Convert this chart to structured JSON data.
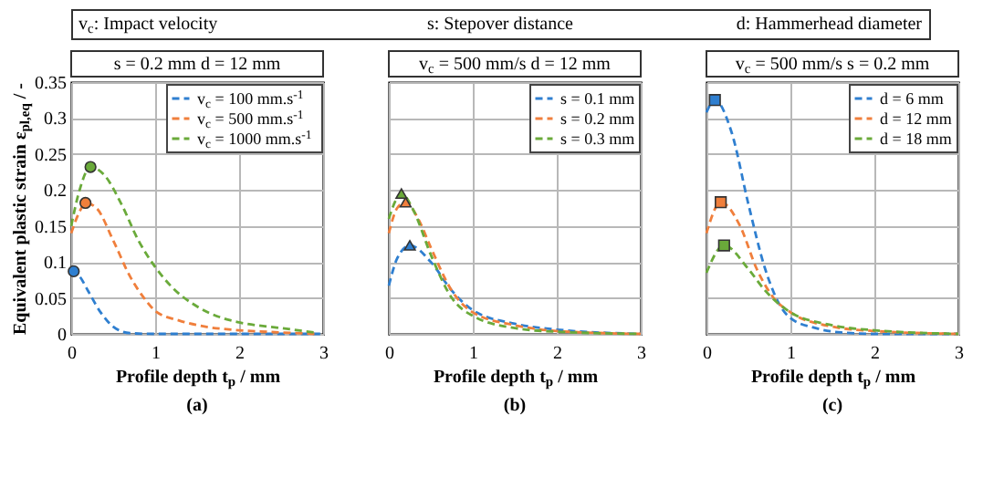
{
  "chart_data": [
    {
      "type": "other",
      "annotations": [
        "v$_{c}$: Impact velocity",
        "s: Stepover distance",
        "d: Hammerhead diameter"
      ]
    },
    {
      "type": "line",
      "subtitle": "s = 0.2 mm d = 12 mm",
      "xlabel": "Profile depth t$_{p}$ / mm",
      "ylabel": "Equivalent plastic strain ε$_{pl,eq}$ / -",
      "annotations": [
        "(a)"
      ],
      "xlim": [
        0,
        3
      ],
      "xticks": [
        0,
        1,
        2,
        3
      ],
      "ylim": [
        0,
        0.35
      ],
      "yticks": [
        0,
        0.05,
        0.1,
        0.15,
        0.2,
        0.25,
        0.3,
        0.35
      ],
      "grid": true,
      "legend": "top right",
      "line_style": "dashed",
      "series": [
        {
          "name": "v$_{c}$ = 100 mm.s$^{-1}$",
          "color": "#2f7fd0",
          "x": [
            0,
            0.03,
            0.1,
            0.2,
            0.35,
            0.5,
            0.7,
            1,
            2,
            3
          ],
          "values": [
            0.085,
            0.087,
            0.08,
            0.06,
            0.03,
            0.01,
            0.001,
            0,
            0,
            0
          ]
        },
        {
          "name": "v$_{c}$ = 500 mm.s$^{-1}$",
          "color": "#f07f3c",
          "x": [
            0,
            0.1,
            0.17,
            0.3,
            0.5,
            0.7,
            0.9,
            1,
            1.3,
            1.6,
            2,
            2.5,
            2.9
          ],
          "values": [
            0.14,
            0.17,
            0.182,
            0.175,
            0.13,
            0.08,
            0.045,
            0.032,
            0.018,
            0.01,
            0.005,
            0.002,
            0
          ]
        },
        {
          "name": "v$_{c}$ = 1000 mm.s$^{-1}$",
          "color": "#6aaa3a",
          "x": [
            0,
            0.1,
            0.23,
            0.4,
            0.6,
            0.8,
            1,
            1.2,
            1.5,
            1.8,
            2,
            2.5,
            2.9
          ],
          "values": [
            0.15,
            0.2,
            0.232,
            0.22,
            0.18,
            0.13,
            0.093,
            0.065,
            0.038,
            0.022,
            0.016,
            0.008,
            0.002
          ]
        },
        {
          "type": "scatter",
          "marker": "circle",
          "color": "#2f7fd0",
          "x": [
            0.03
          ],
          "values": [
            0.087
          ]
        },
        {
          "type": "scatter",
          "marker": "circle",
          "color": "#f07f3c",
          "x": [
            0.17
          ],
          "values": [
            0.182
          ]
        },
        {
          "type": "scatter",
          "marker": "circle",
          "color": "#6aaa3a",
          "x": [
            0.23
          ],
          "values": [
            0.232
          ]
        }
      ]
    },
    {
      "type": "line",
      "subtitle": "v$_{c}$ = 500 mm/s d = 12 mm",
      "xlabel": "Profile depth t$_{p}$ / mm",
      "annotations": [
        "(b)"
      ],
      "xlim": [
        0,
        3
      ],
      "xticks": [
        0,
        1,
        2,
        3
      ],
      "ylim": [
        0,
        0.35
      ],
      "yticks": [
        0,
        0.05,
        0.1,
        0.15,
        0.2,
        0.25,
        0.3,
        0.35
      ],
      "tick_labels": "x",
      "grid": true,
      "legend": "top right",
      "line_style": "dashed",
      "series": [
        {
          "name": "s = 0.1 mm",
          "color": "#2f7fd0",
          "x": [
            0,
            0.1,
            0.25,
            0.5,
            0.75,
            1,
            1.5,
            2,
            3
          ],
          "values": [
            0.067,
            0.105,
            0.123,
            0.1,
            0.06,
            0.033,
            0.014,
            0.006,
            0
          ]
        },
        {
          "name": "s = 0.2 mm",
          "color": "#f07f3c",
          "x": [
            0,
            0.1,
            0.2,
            0.35,
            0.5,
            0.75,
            1,
            1.5,
            2,
            3
          ],
          "values": [
            0.14,
            0.175,
            0.183,
            0.16,
            0.12,
            0.06,
            0.03,
            0.012,
            0.004,
            0
          ]
        },
        {
          "name": "s = 0.3 mm",
          "color": "#6aaa3a",
          "x": [
            0,
            0.08,
            0.15,
            0.3,
            0.5,
            0.75,
            1,
            1.5,
            2,
            3
          ],
          "values": [
            0.16,
            0.185,
            0.195,
            0.17,
            0.11,
            0.05,
            0.025,
            0.008,
            0.003,
            0
          ]
        },
        {
          "type": "scatter",
          "marker": "triangle",
          "color": "#2f7fd0",
          "x": [
            0.25
          ],
          "values": [
            0.123
          ]
        },
        {
          "type": "scatter",
          "marker": "triangle",
          "color": "#f07f3c",
          "x": [
            0.2
          ],
          "values": [
            0.183
          ]
        },
        {
          "type": "scatter",
          "marker": "triangle",
          "color": "#6aaa3a",
          "x": [
            0.15
          ],
          "values": [
            0.195
          ]
        }
      ]
    },
    {
      "type": "line",
      "subtitle": "v$_{c}$ = 500 mm/s s = 0.2 mm",
      "xlabel": "Profile depth t$_{p}$ / mm",
      "annotations": [
        "(c)"
      ],
      "xlim": [
        0,
        3
      ],
      "xticks": [
        0,
        1,
        2,
        3
      ],
      "ylim": [
        0,
        0.35
      ],
      "yticks": [
        0,
        0.05,
        0.1,
        0.15,
        0.2,
        0.25,
        0.3,
        0.35
      ],
      "tick_labels": "x",
      "grid": true,
      "legend": "top right",
      "line_style": "dashed",
      "series": [
        {
          "name": "d = 6 mm",
          "color": "#2f7fd0",
          "x": [
            0,
            0.1,
            0.3,
            0.5,
            0.7,
            0.9,
            1,
            1.3,
            1.6,
            2,
            3
          ],
          "values": [
            0.308,
            0.325,
            0.28,
            0.18,
            0.09,
            0.035,
            0.022,
            0.008,
            0.002,
            0,
            0
          ]
        },
        {
          "name": "d = 12 mm",
          "color": "#f07f3c",
          "x": [
            0,
            0.17,
            0.4,
            0.6,
            0.8,
            1,
            1.5,
            2,
            3
          ],
          "values": [
            0.14,
            0.183,
            0.15,
            0.09,
            0.05,
            0.03,
            0.01,
            0.004,
            0
          ]
        },
        {
          "name": "d = 18 mm",
          "color": "#6aaa3a",
          "x": [
            0,
            0.21,
            0.5,
            0.7,
            1,
            1.5,
            2,
            3
          ],
          "values": [
            0.085,
            0.123,
            0.09,
            0.06,
            0.03,
            0.012,
            0.005,
            0
          ]
        },
        {
          "type": "scatter",
          "marker": "square",
          "color": "#2f7fd0",
          "x": [
            0.1
          ],
          "values": [
            0.325
          ]
        },
        {
          "type": "scatter",
          "marker": "square",
          "color": "#f07f3c",
          "x": [
            0.17
          ],
          "values": [
            0.183
          ]
        },
        {
          "type": "scatter",
          "marker": "square",
          "color": "#6aaa3a",
          "x": [
            0.21
          ],
          "values": [
            0.123
          ]
        }
      ]
    }
  ]
}
